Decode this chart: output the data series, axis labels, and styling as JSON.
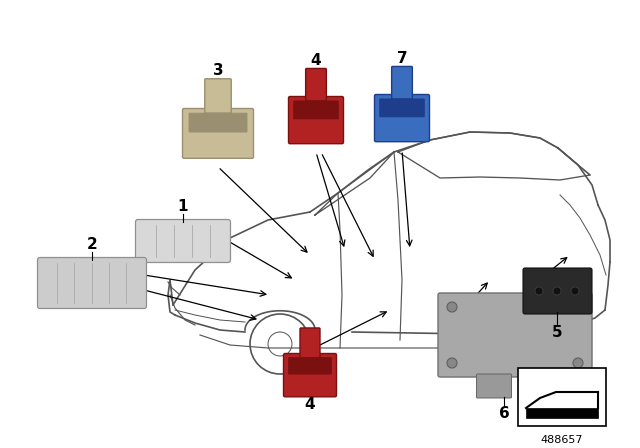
{
  "background_color": "#ffffff",
  "part_number": "488657",
  "line_color": "#000000",
  "car_color": "#000000",
  "beige_color": "#c8bc96",
  "red_color": "#b22222",
  "blue_color": "#3b6dbf",
  "black_color": "#2a2a2a",
  "gray_color": "#a8a8a8",
  "lamp_color": "#d8d8d8"
}
